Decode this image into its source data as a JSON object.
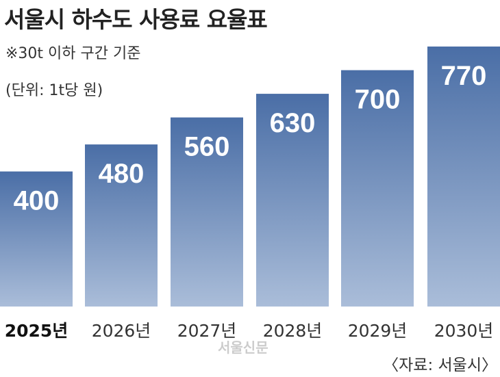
{
  "chart_data": {
    "type": "bar",
    "title": "서울시 하수도 사용료 요율표",
    "subtitle": "※30t 이하 구간 기준",
    "unit": "(단위: 1t당 원)",
    "categories": [
      "2025년",
      "2026년",
      "2027년",
      "2028년",
      "2029년",
      "2030년"
    ],
    "values": [
      400,
      480,
      560,
      630,
      700,
      770
    ],
    "value_labels": [
      "400",
      "480",
      "560",
      "630",
      "700",
      "770"
    ],
    "ylim": [
      0,
      800
    ],
    "grid": false,
    "source": "〈자료: 서울시〉",
    "watermark": "서울신문",
    "colors": {
      "bar_top": "#4a6ea6",
      "bar_bottom": "#aabdd9",
      "label": "#ffffff"
    }
  }
}
